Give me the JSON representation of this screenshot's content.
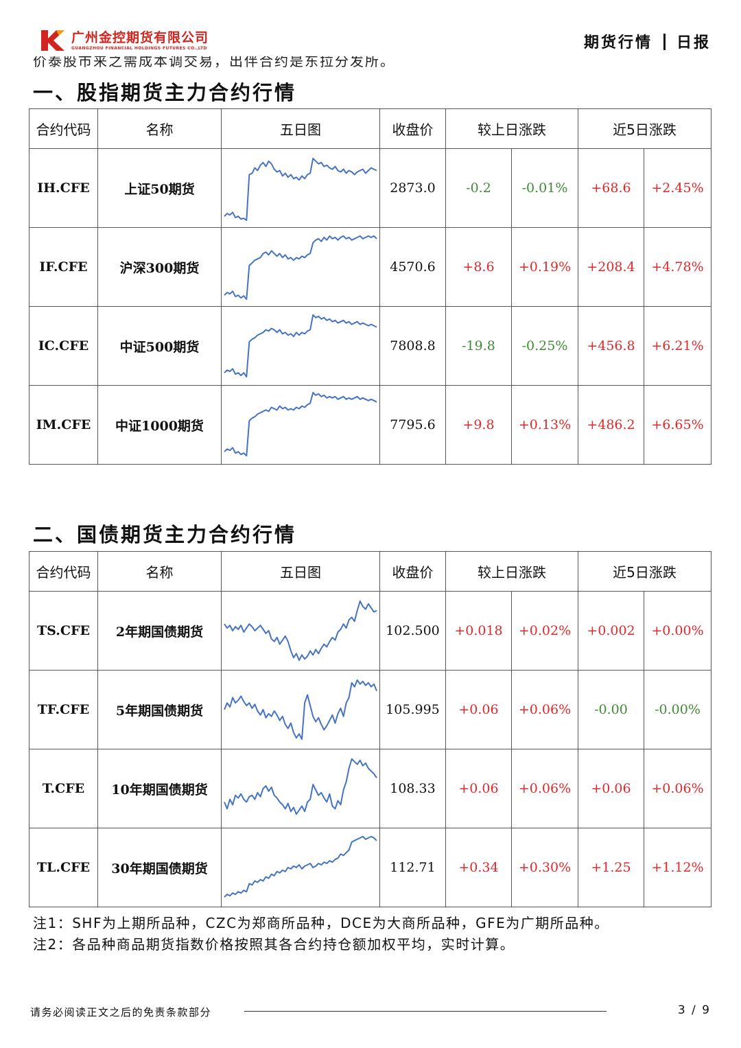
{
  "header": {
    "logo_cn": "广州金控期货有限公司",
    "logo_en": "GUANGZHOU FINANCIAL HOLDINGS FUTURES CO.,LTD",
    "report_type": "期货行情",
    "report_freq": "日报"
  },
  "cut_text": "价泰股市来之需成本调交易，出伴合约是东拉分发所。",
  "columns": [
    "合约代码",
    "名称",
    "五日图",
    "收盘价",
    "较上日涨跌",
    "近5日涨跌"
  ],
  "sections": [
    {
      "title": "一、股指期货主力合约行情",
      "rows": [
        {
          "code": "IH.CFE",
          "name": "上证50期货",
          "close": "2873.0",
          "chg": "-0.2",
          "chg_pct": "-0.01%",
          "chg5": "+68.6",
          "chg5_pct": "+2.45%",
          "spark": [
            0.92,
            0.88,
            0.9,
            0.86,
            0.94,
            0.92,
            0.96,
            0.95,
            0.98,
            0.3,
            0.28,
            0.2,
            0.24,
            0.16,
            0.12,
            0.18,
            0.1,
            0.14,
            0.22,
            0.26,
            0.24,
            0.32,
            0.28,
            0.34,
            0.3,
            0.36,
            0.34,
            0.38,
            0.32,
            0.36,
            0.3,
            0.28,
            0.06,
            0.1,
            0.14,
            0.12,
            0.18,
            0.16,
            0.2,
            0.22,
            0.18,
            0.24,
            0.26,
            0.22,
            0.28,
            0.24,
            0.26,
            0.3,
            0.26,
            0.24,
            0.22,
            0.28,
            0.24,
            0.2,
            0.22,
            0.24
          ]
        },
        {
          "code": "IF.CFE",
          "name": "沪深300期货",
          "close": "4570.6",
          "chg": "+8.6",
          "chg_pct": "+0.19%",
          "chg5": "+208.4",
          "chg5_pct": "+4.78%",
          "spark": [
            0.92,
            0.88,
            0.9,
            0.86,
            0.94,
            0.92,
            0.96,
            0.93,
            0.98,
            0.48,
            0.44,
            0.4,
            0.38,
            0.36,
            0.3,
            0.28,
            0.32,
            0.26,
            0.3,
            0.34,
            0.3,
            0.36,
            0.32,
            0.38,
            0.36,
            0.4,
            0.36,
            0.38,
            0.34,
            0.36,
            0.32,
            0.3,
            0.14,
            0.1,
            0.08,
            0.12,
            0.06,
            0.1,
            0.04,
            0.08,
            0.06,
            0.1,
            0.06,
            0.04,
            0.08,
            0.06,
            0.1,
            0.08,
            0.06,
            0.04,
            0.08,
            0.06,
            0.04,
            0.06,
            0.04,
            0.08
          ]
        },
        {
          "code": "IC.CFE",
          "name": "中证500期货",
          "close": "7808.8",
          "chg": "-19.8",
          "chg_pct": "-0.25%",
          "chg5": "+456.8",
          "chg5_pct": "+6.21%",
          "spark": [
            0.9,
            0.86,
            0.88,
            0.84,
            0.92,
            0.9,
            0.94,
            0.9,
            0.96,
            0.44,
            0.4,
            0.38,
            0.34,
            0.32,
            0.3,
            0.26,
            0.28,
            0.24,
            0.26,
            0.3,
            0.26,
            0.32,
            0.3,
            0.34,
            0.32,
            0.36,
            0.3,
            0.34,
            0.3,
            0.32,
            0.28,
            0.26,
            0.04,
            0.08,
            0.06,
            0.1,
            0.08,
            0.12,
            0.1,
            0.14,
            0.12,
            0.16,
            0.14,
            0.12,
            0.16,
            0.14,
            0.18,
            0.16,
            0.14,
            0.18,
            0.16,
            0.18,
            0.2,
            0.18,
            0.2,
            0.22
          ]
        },
        {
          "code": "IM.CFE",
          "name": "中证1000期货",
          "close": "7795.6",
          "chg": "+9.8",
          "chg_pct": "+0.13%",
          "chg5": "+486.2",
          "chg5_pct": "+6.65%",
          "spark": [
            0.9,
            0.86,
            0.88,
            0.84,
            0.92,
            0.9,
            0.94,
            0.92,
            0.96,
            0.44,
            0.4,
            0.38,
            0.34,
            0.32,
            0.3,
            0.28,
            0.3,
            0.24,
            0.26,
            0.28,
            0.22,
            0.26,
            0.24,
            0.28,
            0.26,
            0.28,
            0.24,
            0.26,
            0.22,
            0.24,
            0.2,
            0.18,
            0.02,
            0.06,
            0.04,
            0.08,
            0.06,
            0.1,
            0.08,
            0.1,
            0.08,
            0.12,
            0.1,
            0.08,
            0.12,
            0.1,
            0.12,
            0.1,
            0.08,
            0.12,
            0.1,
            0.12,
            0.14,
            0.12,
            0.14,
            0.16
          ]
        }
      ]
    },
    {
      "title": "二、国债期货主力合约行情",
      "rows": [
        {
          "code": "TS.CFE",
          "name": "2年期国债期货",
          "close": "102.500",
          "chg": "+0.018",
          "chg_pct": "+0.02%",
          "chg5": "+0.002",
          "chg5_pct": "+0.00%",
          "spark": [
            0.4,
            0.46,
            0.42,
            0.5,
            0.44,
            0.48,
            0.42,
            0.52,
            0.46,
            0.4,
            0.44,
            0.5,
            0.46,
            0.42,
            0.48,
            0.54,
            0.5,
            0.62,
            0.66,
            0.6,
            0.7,
            0.64,
            0.58,
            0.66,
            0.8,
            0.9,
            0.84,
            0.94,
            0.86,
            0.92,
            0.88,
            0.8,
            0.86,
            0.78,
            0.84,
            0.76,
            0.7,
            0.74,
            0.66,
            0.6,
            0.64,
            0.52,
            0.48,
            0.4,
            0.46,
            0.34,
            0.3,
            0.36,
            0.2,
            0.06,
            0.14,
            0.18,
            0.1,
            0.16,
            0.22,
            0.2
          ]
        },
        {
          "code": "TF.CFE",
          "name": "5年期国债期货",
          "close": "105.995",
          "chg": "+0.06",
          "chg_pct": "+0.06%",
          "chg5": "-0.00",
          "chg5_pct": "-0.00%",
          "spark": [
            0.5,
            0.4,
            0.46,
            0.32,
            0.4,
            0.36,
            0.3,
            0.38,
            0.44,
            0.4,
            0.48,
            0.42,
            0.52,
            0.58,
            0.5,
            0.62,
            0.56,
            0.6,
            0.52,
            0.58,
            0.66,
            0.6,
            0.72,
            0.78,
            0.7,
            0.84,
            0.92,
            0.86,
            0.94,
            0.4,
            0.28,
            0.44,
            0.6,
            0.68,
            0.62,
            0.72,
            0.8,
            0.74,
            0.66,
            0.58,
            0.7,
            0.56,
            0.48,
            0.6,
            0.4,
            0.32,
            0.1,
            0.16,
            0.06,
            0.12,
            0.08,
            0.14,
            0.1,
            0.16,
            0.12,
            0.22
          ]
        },
        {
          "code": "T.CFE",
          "name": "10年期国债期货",
          "close": "108.33",
          "chg": "+0.06",
          "chg_pct": "+0.06%",
          "chg5": "+0.06",
          "chg5_pct": "+0.06%",
          "spark": [
            0.7,
            0.8,
            0.66,
            0.74,
            0.6,
            0.64,
            0.58,
            0.66,
            0.7,
            0.62,
            0.6,
            0.66,
            0.56,
            0.62,
            0.5,
            0.46,
            0.54,
            0.48,
            0.6,
            0.64,
            0.7,
            0.74,
            0.8,
            0.72,
            0.84,
            0.78,
            0.88,
            0.82,
            0.76,
            0.84,
            0.7,
            0.66,
            0.44,
            0.52,
            0.6,
            0.56,
            0.64,
            0.7,
            0.58,
            0.76,
            0.8,
            0.68,
            0.74,
            0.52,
            0.4,
            0.2,
            0.06,
            0.1,
            0.14,
            0.08,
            0.16,
            0.12,
            0.2,
            0.24,
            0.28,
            0.34
          ]
        },
        {
          "code": "TL.CFE",
          "name": "30年期国债期货",
          "close": "112.71",
          "chg": "+0.34",
          "chg_pct": "+0.30%",
          "chg5": "+1.25",
          "chg5_pct": "+1.12%",
          "spark": [
            0.94,
            0.9,
            0.92,
            0.88,
            0.9,
            0.86,
            0.88,
            0.84,
            0.86,
            0.74,
            0.76,
            0.7,
            0.72,
            0.68,
            0.7,
            0.64,
            0.66,
            0.6,
            0.62,
            0.56,
            0.58,
            0.54,
            0.56,
            0.5,
            0.52,
            0.48,
            0.5,
            0.46,
            0.52,
            0.48,
            0.46,
            0.44,
            0.5,
            0.48,
            0.44,
            0.46,
            0.42,
            0.44,
            0.4,
            0.42,
            0.38,
            0.36,
            0.3,
            0.32,
            0.28,
            0.24,
            0.12,
            0.1,
            0.08,
            0.06,
            0.04,
            0.08,
            0.06,
            0.04,
            0.06,
            0.1
          ]
        }
      ]
    }
  ],
  "notes": [
    "注1：SHF为上期所品种，CZC为郑商所品种，DCE为大商所品种，GFE为广期所品种。",
    "注2：各品种商品期货指数价格按照其各合约持仓额加权平均，实时计算。"
  ],
  "footer": {
    "disclaimer": "请务必阅读正文之后的免责条款部分",
    "page": "3 / 9"
  },
  "colors": {
    "up": "#e0282b",
    "down": "#3f8a34",
    "spark": "#4472c4",
    "brand": "#d0261f"
  }
}
